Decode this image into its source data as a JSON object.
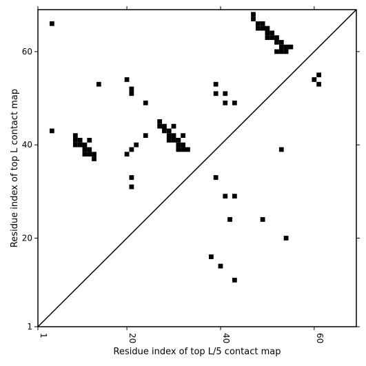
{
  "chart_data": {
    "type": "heatmap",
    "xlabel": "Residue index of top L/5 contact map",
    "ylabel": "Residue index of top L contact map",
    "xlim": [
      1,
      69
    ],
    "ylim": [
      1,
      69
    ],
    "x_ticks": [
      1,
      20,
      40,
      60
    ],
    "y_ticks": [
      1,
      20,
      40,
      60
    ],
    "x_tick_rotation": 90,
    "diagonal": true,
    "grid": false,
    "color": "#000000",
    "upper_contacts": [
      [
        4,
        66
      ],
      [
        4,
        43
      ],
      [
        14,
        53
      ],
      [
        9,
        42
      ],
      [
        9,
        41
      ],
      [
        9,
        40
      ],
      [
        10,
        41
      ],
      [
        10,
        40
      ],
      [
        11,
        40
      ],
      [
        11,
        39
      ],
      [
        11,
        38
      ],
      [
        12,
        41
      ],
      [
        12,
        39
      ],
      [
        12,
        38
      ],
      [
        13,
        38
      ],
      [
        13,
        37
      ],
      [
        20,
        54
      ],
      [
        20,
        38
      ],
      [
        21,
        52
      ],
      [
        21,
        51
      ],
      [
        21,
        39
      ],
      [
        21,
        33
      ],
      [
        21,
        31
      ],
      [
        22,
        40
      ],
      [
        24,
        49
      ],
      [
        24,
        42
      ],
      [
        27,
        45
      ],
      [
        27,
        44
      ],
      [
        28,
        44
      ],
      [
        28,
        43
      ],
      [
        29,
        43
      ],
      [
        29,
        42
      ],
      [
        29,
        41
      ],
      [
        30,
        44
      ],
      [
        30,
        42
      ],
      [
        30,
        41
      ],
      [
        31,
        41
      ],
      [
        31,
        40
      ],
      [
        31,
        39
      ],
      [
        32,
        42
      ],
      [
        32,
        40
      ],
      [
        32,
        39
      ],
      [
        33,
        39
      ],
      [
        39,
        53
      ],
      [
        39,
        51
      ],
      [
        39,
        33
      ],
      [
        41,
        51
      ],
      [
        41,
        49
      ],
      [
        41,
        29
      ],
      [
        42,
        24
      ],
      [
        43,
        49
      ],
      [
        43,
        29
      ],
      [
        47,
        68
      ],
      [
        47,
        67
      ],
      [
        48,
        66
      ],
      [
        48,
        65
      ],
      [
        49,
        66
      ],
      [
        49,
        65
      ],
      [
        50,
        65
      ],
      [
        50,
        64
      ],
      [
        50,
        63
      ],
      [
        51,
        64
      ],
      [
        51,
        63
      ],
      [
        52,
        63
      ],
      [
        52,
        62
      ],
      [
        52,
        60
      ],
      [
        53,
        62
      ],
      [
        53,
        61
      ],
      [
        53,
        60
      ],
      [
        53,
        39
      ],
      [
        54,
        61
      ],
      [
        54,
        60
      ],
      [
        54,
        20
      ],
      [
        55,
        61
      ],
      [
        49,
        24
      ],
      [
        60,
        54
      ],
      [
        61,
        55
      ],
      [
        61,
        53
      ]
    ],
    "lower_contacts": [
      [
        38,
        16
      ],
      [
        40,
        14
      ],
      [
        43,
        11
      ]
    ]
  }
}
